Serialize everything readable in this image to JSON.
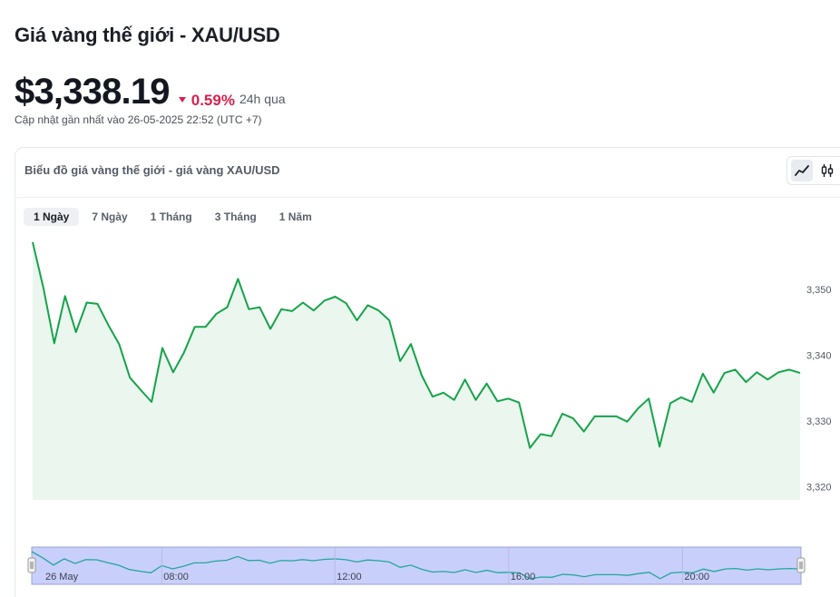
{
  "page": {
    "title": "Giá vàng thế giới - XAU/USD",
    "price": "$3,338.19",
    "change": "0.59%",
    "change_period": "24h qua",
    "updated": "Cập nhật gần nhất vào 26-05-2025 22:52 (UTC +7)"
  },
  "card": {
    "title": "Biểu đồ giá vàng thế giới - giá vàng XAU/USD",
    "tabs": [
      "1 Ngày",
      "7 Ngày",
      "1 Tháng",
      "3 Tháng",
      "1 Năm"
    ],
    "active_tab": 0,
    "view_icons": [
      "line-chart-icon",
      "candlestick-icon"
    ]
  },
  "colors": {
    "line": "#16a34a",
    "area": "#eaf6ee",
    "negative": "#d9204d",
    "navigator_fill": "#c9cffb",
    "navigator_line": "#23a79a"
  },
  "chart_data": {
    "type": "area",
    "title": "",
    "xlabel": "",
    "ylabel": "",
    "ylim": [
      3318,
      3358
    ],
    "yticks": [
      3320,
      3330,
      3340,
      3350
    ],
    "ytick_labels": [
      "3,320",
      "3,330",
      "3,340",
      "3,350"
    ],
    "grid": false,
    "series": [
      {
        "values": [
          3357.2,
          3350.2,
          3341.8,
          3349.0,
          3343.5,
          3348.0,
          3347.8,
          3344.6,
          3341.7,
          3336.6,
          3334.7,
          3332.9,
          3341.1,
          3337.4,
          3340.4,
          3344.3,
          3344.3,
          3346.3,
          3347.3,
          3351.6,
          3347.0,
          3347.3,
          3344.0,
          3347.0,
          3346.7,
          3348.0,
          3346.8,
          3348.3,
          3348.9,
          3347.9,
          3345.3,
          3347.6,
          3346.8,
          3345.3,
          3339.1,
          3341.7,
          3336.9,
          3333.7,
          3334.3,
          3333.2,
          3336.3,
          3333.2,
          3335.7,
          3333.0,
          3333.4,
          3332.8,
          3325.9,
          3328.0,
          3327.7,
          3331.1,
          3330.4,
          3328.4,
          3330.7,
          3330.7,
          3330.7,
          3329.9,
          3331.9,
          3333.4,
          3326.1,
          3332.7,
          3333.6,
          3332.9,
          3337.2,
          3334.3,
          3337.3,
          3337.8,
          3335.9,
          3337.4,
          3336.3,
          3337.4,
          3337.8,
          3337.3
        ]
      }
    ],
    "navigator_labels": [
      "26 May",
      "08:00",
      "12:00",
      "16:00",
      "20:00"
    ]
  }
}
